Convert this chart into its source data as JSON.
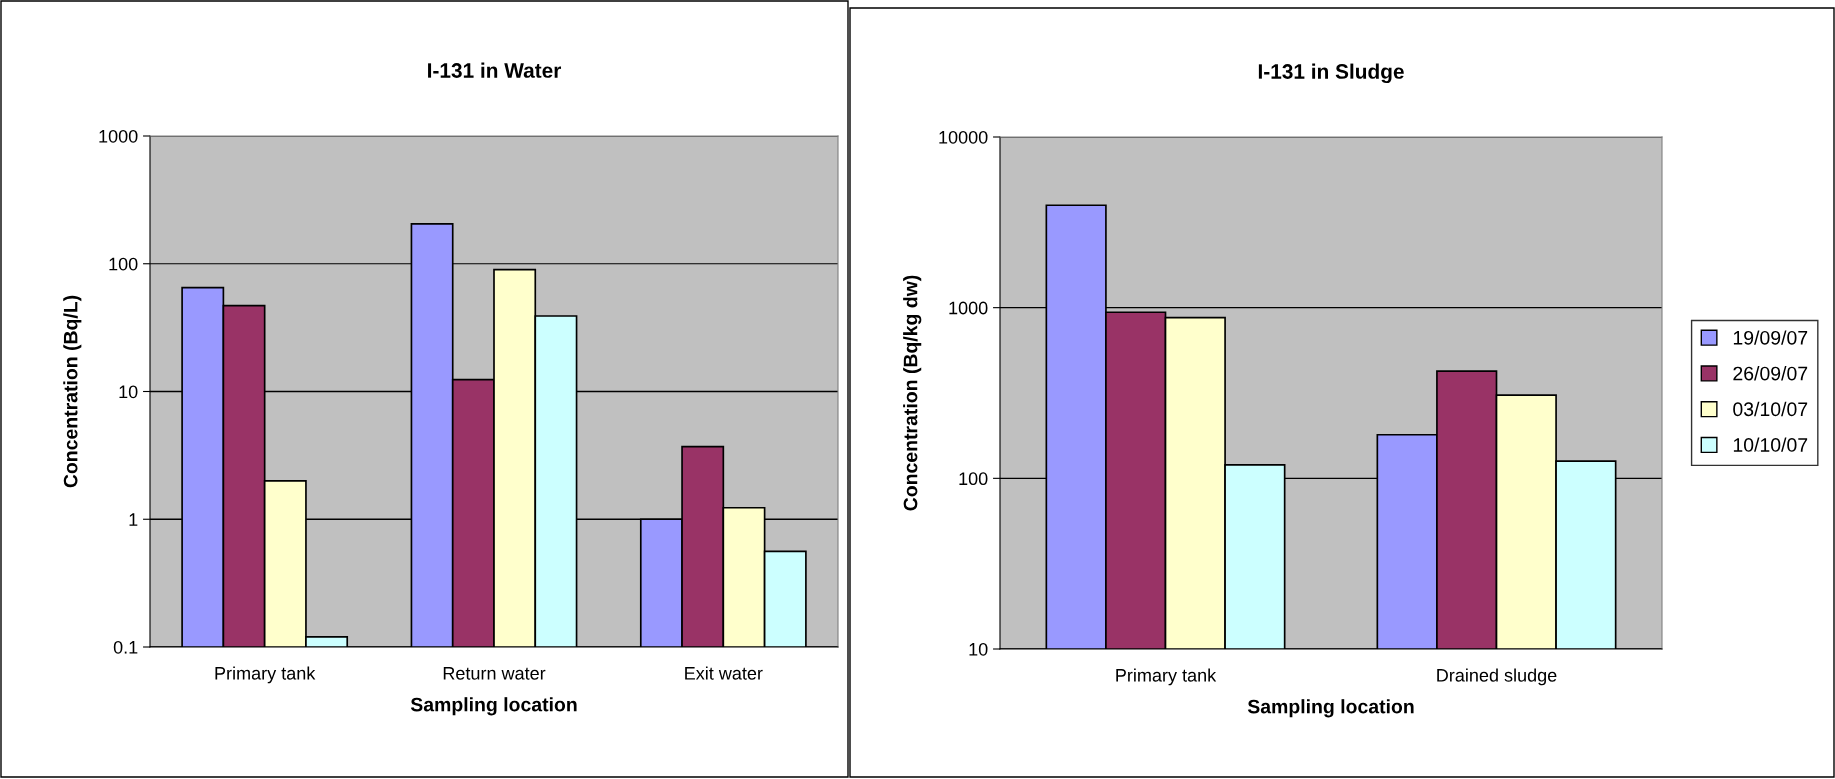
{
  "chart_data": [
    {
      "type": "bar",
      "title": "I-131 in Water",
      "xlabel": "Sampling location",
      "ylabel": "Concentration (Bq/L)",
      "categories": [
        "Primary tank",
        "Return water",
        "Exit water"
      ],
      "log": true,
      "ylim": [
        0.1,
        1000
      ],
      "yticks": [
        0.1,
        1,
        10,
        100,
        1000
      ],
      "grid": "y",
      "legend": false,
      "series": [
        {
          "color": "#9999ff",
          "values": [
            65,
            205,
            1
          ]
        },
        {
          "color": "#993366",
          "values": [
            47,
            12.4,
            3.7
          ]
        },
        {
          "color": "#ffffcc",
          "values": [
            2,
            90,
            1.23
          ]
        },
        {
          "color": "#ccffff",
          "values": [
            0.12,
            39,
            0.56
          ]
        }
      ]
    },
    {
      "type": "bar",
      "title": "I-131 in Sludge",
      "xlabel": "Sampling location",
      "ylabel": "Concentration (Bq/kg dw)",
      "categories": [
        "Primary tank",
        "Drained sludge"
      ],
      "log": true,
      "ylim": [
        10,
        10000
      ],
      "yticks": [
        10,
        100,
        1000,
        10000
      ],
      "grid": "y",
      "legend": "right",
      "series": [
        {
          "name": "19/09/07",
          "color": "#9999ff",
          "values": [
            3980,
            180
          ]
        },
        {
          "name": "26/09/07",
          "color": "#993366",
          "values": [
            940,
            425
          ]
        },
        {
          "name": "03/10/07",
          "color": "#ffffcc",
          "values": [
            875,
            307
          ]
        },
        {
          "name": "10/10/07",
          "color": "#ccffff",
          "values": [
            120,
            126
          ]
        }
      ]
    }
  ]
}
